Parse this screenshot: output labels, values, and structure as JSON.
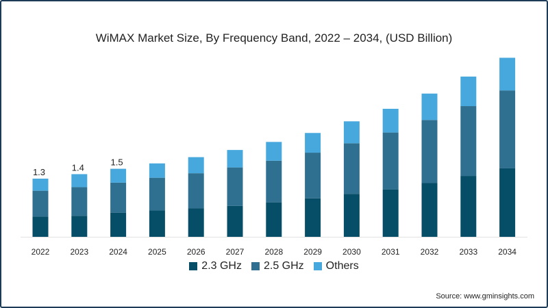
{
  "chart_data": {
    "type": "bar",
    "stacked": true,
    "title": "WiMAX Market Size, By Frequency Band, 2022 – 2034, (USD Billion)",
    "xlabel": "",
    "ylabel": "",
    "categories": [
      "2022",
      "2023",
      "2024",
      "2025",
      "2026",
      "2027",
      "2028",
      "2029",
      "2030",
      "2031",
      "2032",
      "2033",
      "2034"
    ],
    "series": [
      {
        "name": "2.3 GHz",
        "color": "#064d68",
        "values": [
          0.45,
          0.47,
          0.54,
          0.59,
          0.64,
          0.69,
          0.77,
          0.86,
          0.96,
          1.06,
          1.2,
          1.36,
          1.53
        ]
      },
      {
        "name": "2.5 GHz",
        "color": "#2f6f8f",
        "values": [
          0.58,
          0.64,
          0.67,
          0.73,
          0.78,
          0.86,
          0.93,
          1.02,
          1.13,
          1.27,
          1.41,
          1.56,
          1.74
        ]
      },
      {
        "name": "Others",
        "color": "#46a8dc",
        "values": [
          0.27,
          0.29,
          0.31,
          0.32,
          0.36,
          0.39,
          0.42,
          0.44,
          0.49,
          0.53,
          0.59,
          0.66,
          0.73
        ]
      }
    ],
    "data_labels": [
      {
        "category": "2022",
        "text": "1.3"
      },
      {
        "category": "2023",
        "text": "1.4"
      },
      {
        "category": "2024",
        "text": "1.5"
      }
    ],
    "ylim": [
      0,
      4.2
    ],
    "grid": false,
    "legend_position": "bottom"
  },
  "source": "Source: www.gminsights.com"
}
